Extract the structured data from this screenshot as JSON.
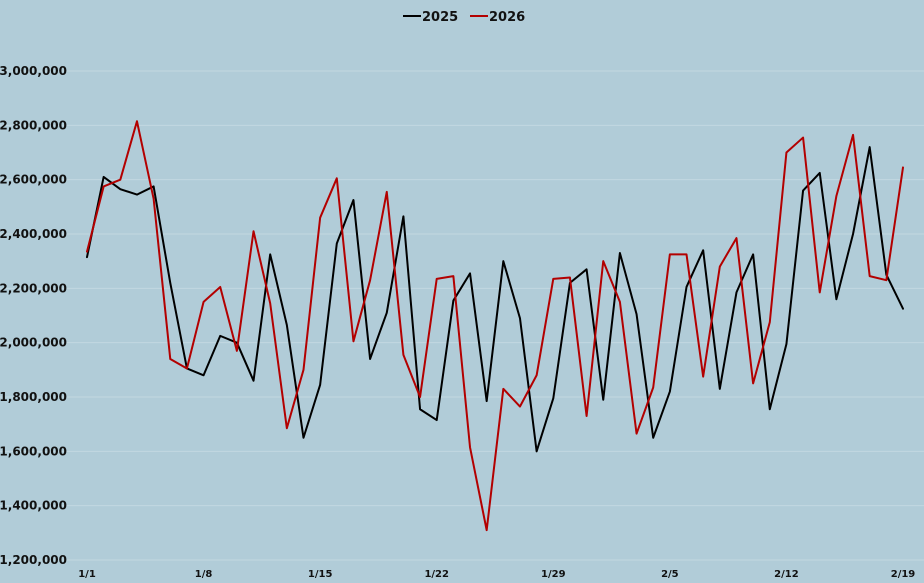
{
  "chart_data": {
    "type": "line",
    "title": "",
    "xlabel": "",
    "ylabel": "",
    "ylim": [
      1200000,
      3000000
    ],
    "grid": true,
    "legend_position": "top-center",
    "yticks": [
      1200000,
      1400000,
      1600000,
      1800000,
      2000000,
      2200000,
      2400000,
      2600000,
      2800000,
      3000000
    ],
    "ytick_labels": [
      "1,200,000",
      "1,400,000",
      "1,600,000",
      "1,800,000",
      "2,000,000",
      "2,200,000",
      "2,400,000",
      "2,600,000",
      "2,800,000",
      "3,000,000"
    ],
    "x": [
      "1/1",
      "1/2",
      "1/3",
      "1/4",
      "1/5",
      "1/6",
      "1/7",
      "1/8",
      "1/9",
      "1/10",
      "1/11",
      "1/12",
      "1/13",
      "1/14",
      "1/15",
      "1/16",
      "1/17",
      "1/18",
      "1/19",
      "1/20",
      "1/21",
      "1/22",
      "1/23",
      "1/24",
      "1/25",
      "1/26",
      "1/27",
      "1/28",
      "1/29",
      "1/30",
      "1/31",
      "2/1",
      "2/2",
      "2/3",
      "2/4",
      "2/5",
      "2/6",
      "2/7",
      "2/8",
      "2/9",
      "2/10",
      "2/11",
      "2/12",
      "2/13",
      "2/14",
      "2/15",
      "2/16",
      "2/17",
      "2/18",
      "2/19"
    ],
    "xtick_labels": [
      "1/1",
      "1/8",
      "1/15",
      "1/22",
      "1/29",
      "2/5",
      "2/12",
      "2/19"
    ],
    "series": [
      {
        "name": "2025",
        "color": "#000000",
        "values": [
          2315000,
          2610000,
          2565000,
          2545000,
          2575000,
          2220000,
          1905000,
          1880000,
          2025000,
          2000000,
          1860000,
          2325000,
          2065000,
          1650000,
          1845000,
          2365000,
          2525000,
          1940000,
          2110000,
          2465000,
          1755000,
          1715000,
          2155000,
          2255000,
          1785000,
          2300000,
          2090000,
          1600000,
          1795000,
          2220000,
          2270000,
          1790000,
          2330000,
          2105000,
          1650000,
          1820000,
          2205000,
          2340000,
          1830000,
          2185000,
          2325000,
          1755000,
          1995000,
          2560000,
          2625000,
          2160000,
          2400000,
          2720000,
          2250000,
          2125000
        ]
      },
      {
        "name": "2026",
        "color": "#b30000",
        "values": [
          2335000,
          2575000,
          2600000,
          2815000,
          2530000,
          1940000,
          1905000,
          2150000,
          2205000,
          1970000,
          2410000,
          2145000,
          1685000,
          1900000,
          2460000,
          2605000,
          2005000,
          2230000,
          2555000,
          1955000,
          1800000,
          2235000,
          2245000,
          1615000,
          1310000,
          1830000,
          1765000,
          1880000,
          2235000,
          2240000,
          1730000,
          2300000,
          2150000,
          1665000,
          1835000,
          2325000,
          2325000,
          1875000,
          2280000,
          2385000,
          1850000,
          2075000,
          2700000,
          2755000,
          2185000,
          2540000,
          2765000,
          2245000,
          2230000,
          2645000
        ]
      }
    ]
  }
}
